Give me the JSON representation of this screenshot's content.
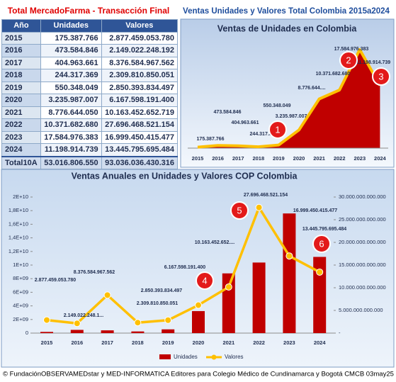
{
  "header": {
    "table_title": "Total MercadoFarma - Transacción Final",
    "dashboard_title": "Ventas Unidades y Valores Total Colombia 2015a2024"
  },
  "table": {
    "columns": [
      "Año",
      "Unidades",
      "Valores"
    ],
    "rows": [
      [
        "2015",
        "175.387.766",
        "2.877.459.053.780"
      ],
      [
        "2016",
        "473.584.846",
        "2.149.022.248.192"
      ],
      [
        "2017",
        "404.963.661",
        "8.376.584.967.562"
      ],
      [
        "2018",
        "244.317.369",
        "2.309.810.850.051"
      ],
      [
        "2019",
        "550.348.049",
        "2.850.393.834.497"
      ],
      [
        "2020",
        "3.235.987.007",
        "6.167.598.191.400"
      ],
      [
        "2021",
        "8.776.644.050",
        "10.163.452.652.719"
      ],
      [
        "2022",
        "10.371.682.680",
        "27.696.468.521.154"
      ],
      [
        "2023",
        "17.584.976.383",
        "16.999.450.415.477"
      ],
      [
        "2024",
        "11.198.914.739",
        "13.445.795.695.484"
      ],
      [
        "Total10A",
        "53.016.806.550",
        "93.036.036.430.316"
      ]
    ]
  },
  "chart_data": [
    {
      "type": "area",
      "title": "Ventas de Unidades en Colombia",
      "categories": [
        "2015",
        "2016",
        "2017",
        "2018",
        "2019",
        "2020",
        "2021",
        "2022",
        "2023",
        "2024"
      ],
      "values": [
        175387766,
        473584846,
        404963661,
        244317369,
        550348049,
        3235987007,
        8776644050,
        10371682680,
        17584976383,
        11198914739
      ],
      "value_labels": [
        "175.387.766",
        "473.584.846",
        "404.963.661",
        "244.317.369",
        "550.348.049",
        "3.235.987.007",
        "8.776.644....",
        "10.371.682.680",
        "17.584.976.383",
        "11.198.914.739"
      ],
      "color": "#c00000",
      "line_color": "#ffc000",
      "annotations": [
        "1",
        "2",
        "3"
      ]
    },
    {
      "type": "combo",
      "title": "Ventas Anuales en Unidades y Valores COP Colombia",
      "categories": [
        "2015",
        "2016",
        "2017",
        "2018",
        "2019",
        "2020",
        "2021",
        "2022",
        "2023",
        "2024"
      ],
      "series": [
        {
          "name": "Unidades",
          "type": "bar",
          "color": "#c00000",
          "values": [
            175387766,
            473584846,
            404963661,
            244317369,
            550348049,
            3235987007,
            8776644050,
            10371682680,
            17584976383,
            11198914739
          ]
        },
        {
          "name": "Valores",
          "type": "line",
          "color": "#ffc000",
          "axis": "y2",
          "values": [
            2877459053780,
            2149022248192,
            8376584967562,
            2309810850051,
            2850393834497,
            6167598191400,
            10163452652719,
            27696468521154,
            16999450415477,
            13445795695484
          ],
          "value_labels": [
            "2.877.459.053.780",
            "2.149.022.248.1...",
            "8.376.584.967.562",
            "2.309.810.850.051",
            "2.850.393.834.497",
            "6.167.598.191.400",
            "10.163.452.652....",
            "27.696.468.521.154",
            "16.999.450.415.477",
            "13.445.795.695.484"
          ]
        }
      ],
      "ylim": [
        0,
        20000000000
      ],
      "yticks": [
        0,
        {
          "value": 2000000000,
          "label": "2E+09"
        },
        {
          "value": 4000000000,
          "label": "4E+09"
        },
        {
          "value": 6000000000,
          "label": "6E+09"
        },
        {
          "value": 8000000000,
          "label": "8E+09"
        },
        {
          "value": 10000000000,
          "label": "1E+10"
        },
        {
          "value": 12000000000,
          "label": "1,2E+10"
        },
        {
          "value": 14000000000,
          "label": "1,4E+10"
        },
        {
          "value": 16000000000,
          "label": "1,6E+10"
        },
        {
          "value": 18000000000,
          "label": "1,8E+10"
        },
        {
          "value": 20000000000,
          "label": "2E+10"
        }
      ],
      "y2lim": [
        0,
        30000000000000
      ],
      "y2ticks": [
        {
          "value": 0,
          "label": "-"
        },
        {
          "value": 5000000000000,
          "label": "5.000.000.000.000"
        },
        {
          "value": 10000000000000,
          "label": "10.000.000.000.000"
        },
        {
          "value": 15000000000000,
          "label": "15.000.000.000.000"
        },
        {
          "value": 20000000000000,
          "label": "20.000.000.000.000"
        },
        {
          "value": 25000000000000,
          "label": "25.000.000.000.000"
        },
        {
          "value": 30000000000000,
          "label": "30.000.000.000.000"
        }
      ],
      "annotations": [
        "4",
        "5",
        "6"
      ]
    }
  ],
  "footer": "© FundaciónOBSERVAMEDstar y MED-INFORMATICA Editores para Colegio Médico de Cundinamarca y Bogotá CMCB 03may25"
}
